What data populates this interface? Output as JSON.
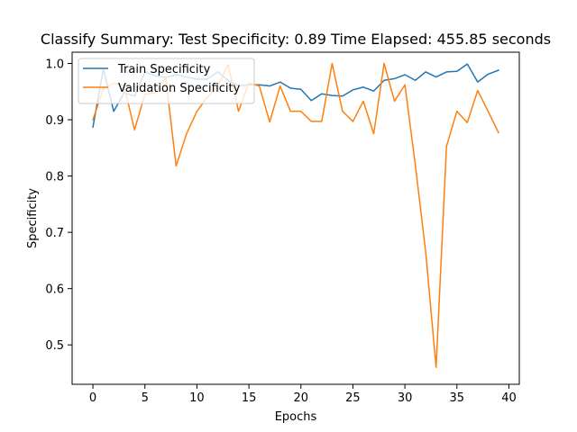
{
  "chart_data": {
    "type": "line",
    "title": "Classify Summary: Test Specificity: 0.89 Time Elapsed: 455.85 seconds",
    "xlabel": "Epochs",
    "ylabel": "Specificity",
    "xlim": [
      -2,
      41
    ],
    "ylim": [
      0.43,
      1.02
    ],
    "xticks": [
      0,
      5,
      10,
      15,
      20,
      25,
      30,
      35,
      40
    ],
    "yticks": [
      0.5,
      0.6,
      0.7,
      0.8,
      0.9,
      1.0
    ],
    "ytick_labels": [
      "0.5",
      "0.6",
      "0.7",
      "0.8",
      "0.9",
      "1.0"
    ],
    "grid": false,
    "legend_position": "top-left",
    "x": [
      0,
      1,
      2,
      3,
      4,
      5,
      6,
      7,
      8,
      9,
      10,
      11,
      12,
      13,
      14,
      15,
      16,
      17,
      18,
      19,
      20,
      21,
      22,
      23,
      24,
      25,
      26,
      27,
      28,
      29,
      30,
      31,
      32,
      33,
      34,
      35,
      36,
      37,
      38,
      39
    ],
    "series": [
      {
        "name": "Train Specificity",
        "color": "#1f77b4",
        "values": [
          0.887,
          0.99,
          0.915,
          0.948,
          0.942,
          0.985,
          0.978,
          0.975,
          0.98,
          0.976,
          0.972,
          0.972,
          0.985,
          0.97,
          0.96,
          0.962,
          0.962,
          0.96,
          0.967,
          0.956,
          0.954,
          0.934,
          0.946,
          0.943,
          0.942,
          0.953,
          0.958,
          0.951,
          0.97,
          0.973,
          0.98,
          0.97,
          0.985,
          0.976,
          0.985,
          0.986,
          0.999,
          0.967,
          0.981,
          0.988
        ]
      },
      {
        "name": "Validation Specificity",
        "color": "#ff7f0e",
        "values": [
          0.9,
          0.955,
          0.965,
          0.96,
          0.882,
          0.945,
          0.948,
          0.975,
          0.818,
          0.875,
          0.915,
          0.94,
          0.96,
          0.998,
          0.915,
          0.965,
          0.96,
          0.896,
          0.96,
          0.915,
          0.915,
          0.897,
          0.897,
          1.0,
          0.915,
          0.897,
          0.933,
          0.875,
          1.0,
          0.933,
          0.962,
          0.82,
          0.665,
          0.46,
          0.853,
          0.915,
          0.895,
          0.952,
          0.915,
          0.877
        ]
      }
    ]
  }
}
